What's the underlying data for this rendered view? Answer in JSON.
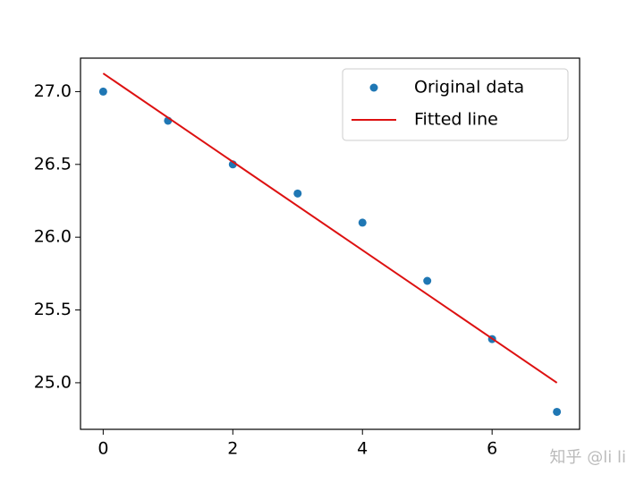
{
  "chart_data": {
    "type": "scatter",
    "series": [
      {
        "name": "Original data",
        "type": "scatter",
        "color": "#1f77b4",
        "x": [
          0,
          1,
          2,
          3,
          4,
          5,
          6,
          7
        ],
        "values": [
          27.0,
          26.8,
          26.5,
          26.3,
          26.1,
          25.7,
          25.3,
          24.8
        ]
      },
      {
        "name": "Fitted line",
        "type": "line",
        "color": "#dd1111",
        "x": [
          0,
          7
        ],
        "values": [
          27.125,
          25.0
        ]
      }
    ],
    "xlim": [
      -0.35,
      7.35
    ],
    "xticks": [
      0,
      2,
      4,
      6
    ],
    "ylim": [
      24.68,
      27.23
    ],
    "yticks": [
      {
        "value": 25,
        "label": "25.0"
      },
      25.5,
      {
        "value": 26,
        "label": "26.0"
      },
      26.5,
      {
        "value": 27,
        "label": "27.0"
      }
    ],
    "legend": "upper right",
    "watermark": "知乎 @li li"
  }
}
